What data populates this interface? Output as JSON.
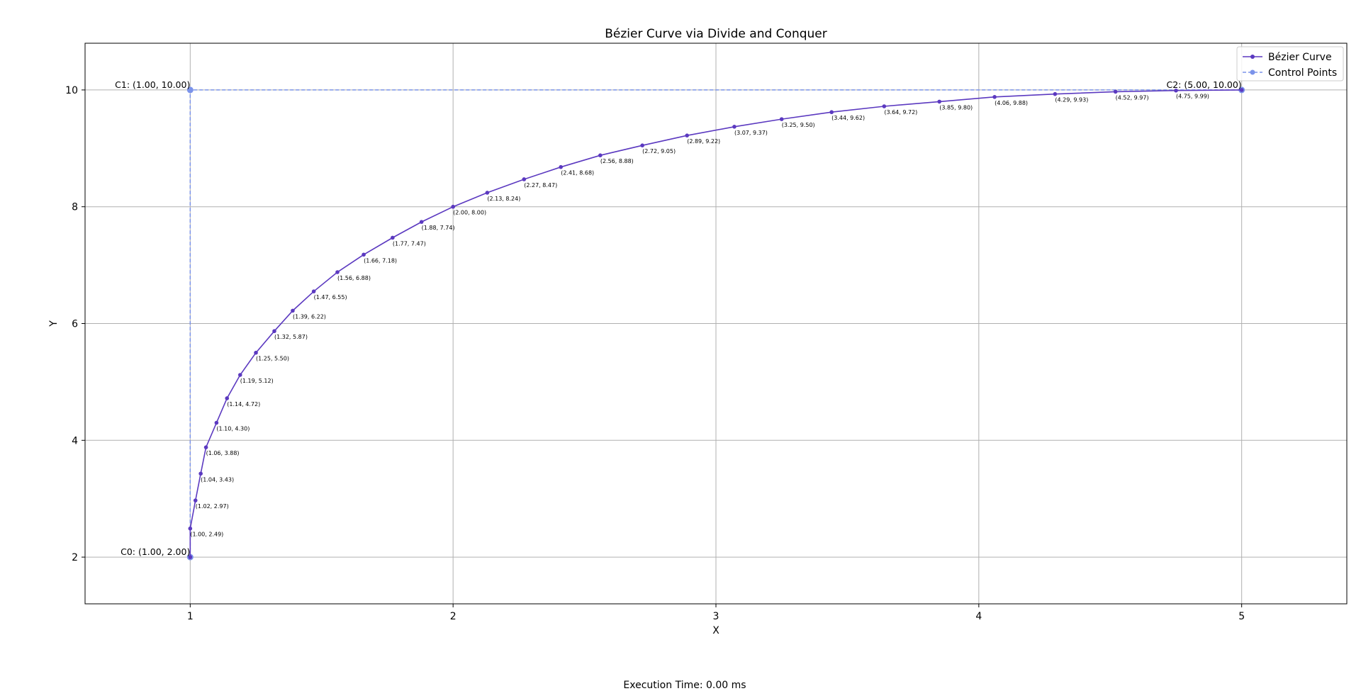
{
  "chart_data": {
    "type": "line",
    "title": "Bézier Curve via Divide and Conquer",
    "xlabel": "X",
    "ylabel": "Y",
    "xlim": [
      0.6,
      5.4
    ],
    "ylim": [
      1.2,
      10.8
    ],
    "xticks": [
      1,
      2,
      3,
      4,
      5
    ],
    "yticks": [
      2,
      4,
      6,
      8,
      10
    ],
    "grid": true,
    "legend_position": "top-right",
    "colors": {
      "curve": "#5b39c0",
      "control": "#7b93ea",
      "grid": "#b0b0b0"
    },
    "series": [
      {
        "name": "Bézier Curve",
        "style": "solid line with circle markers",
        "points": [
          [
            1.0,
            2.0
          ],
          [
            1.0,
            2.49
          ],
          [
            1.02,
            2.97
          ],
          [
            1.04,
            3.43
          ],
          [
            1.06,
            3.88
          ],
          [
            1.1,
            4.3
          ],
          [
            1.14,
            4.72
          ],
          [
            1.19,
            5.12
          ],
          [
            1.25,
            5.5
          ],
          [
            1.32,
            5.87
          ],
          [
            1.39,
            6.22
          ],
          [
            1.47,
            6.55
          ],
          [
            1.56,
            6.88
          ],
          [
            1.66,
            7.18
          ],
          [
            1.77,
            7.47
          ],
          [
            1.88,
            7.74
          ],
          [
            2.0,
            8.0
          ],
          [
            2.13,
            8.24
          ],
          [
            2.27,
            8.47
          ],
          [
            2.41,
            8.68
          ],
          [
            2.56,
            8.88
          ],
          [
            2.72,
            9.05
          ],
          [
            2.89,
            9.22
          ],
          [
            3.07,
            9.37
          ],
          [
            3.25,
            9.5
          ],
          [
            3.44,
            9.62
          ],
          [
            3.64,
            9.72
          ],
          [
            3.85,
            9.8
          ],
          [
            4.06,
            9.88
          ],
          [
            4.29,
            9.93
          ],
          [
            4.52,
            9.97
          ],
          [
            4.75,
            9.99
          ],
          [
            5.0,
            10.0
          ]
        ],
        "point_labels": [
          "",
          "(1.00, 2.49)",
          "(1.02, 2.97)",
          "(1.04, 3.43)",
          "(1.06, 3.88)",
          "(1.10, 4.30)",
          "(1.14, 4.72)",
          "(1.19, 5.12)",
          "(1.25, 5.50)",
          "(1.32, 5.87)",
          "(1.39, 6.22)",
          "(1.47, 6.55)",
          "(1.56, 6.88)",
          "(1.66, 7.18)",
          "(1.77, 7.47)",
          "(1.88, 7.74)",
          "(2.00, 8.00)",
          "(2.13, 8.24)",
          "(2.27, 8.47)",
          "(2.41, 8.68)",
          "(2.56, 8.88)",
          "(2.72, 9.05)",
          "(2.89, 9.22)",
          "(3.07, 9.37)",
          "(3.25, 9.50)",
          "(3.44, 9.62)",
          "(3.64, 9.72)",
          "(3.85, 9.80)",
          "(4.06, 9.88)",
          "(4.29, 9.93)",
          "(4.52, 9.97)",
          "(4.75, 9.99)",
          ""
        ]
      },
      {
        "name": "Control Points",
        "style": "dashed line with circle markers",
        "points": [
          [
            1.0,
            2.0
          ],
          [
            1.0,
            10.0
          ],
          [
            5.0,
            10.0
          ]
        ],
        "point_labels": [
          "C0: (1.00, 2.00)",
          "C1: (1.00, 10.00)",
          "C2: (5.00, 10.00)"
        ]
      }
    ]
  },
  "footer": {
    "execution_time": "Execution Time: 0.00 ms"
  }
}
